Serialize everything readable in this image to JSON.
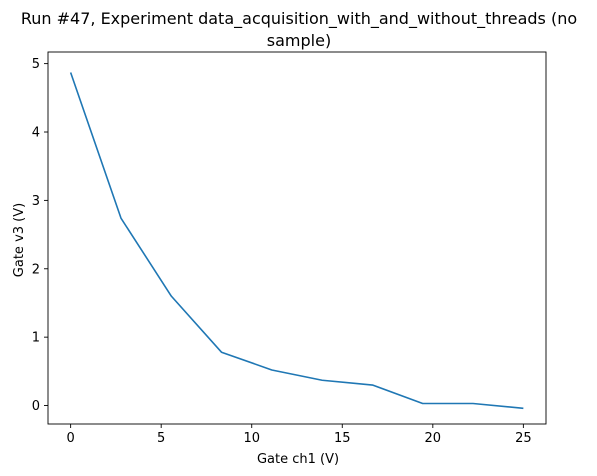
{
  "chart_data": {
    "type": "line",
    "title": "Run #47, Experiment data_acquisition_with_and_without_threads (no sample)",
    "title_lines": [
      "Run #47, Experiment data_acquisition_with_and_without_threads (no",
      "sample)"
    ],
    "xlabel": "Gate ch1 (V)",
    "ylabel": "Gate v3 (V)",
    "xlim": [
      -1.25,
      26.25
    ],
    "ylim": [
      -0.27,
      5.17
    ],
    "xticks": [
      0,
      5,
      10,
      15,
      20,
      25
    ],
    "yticks": [
      0,
      1,
      2,
      3,
      4,
      5
    ],
    "grid": false,
    "series": [
      {
        "color": "#1f77b4",
        "x": [
          0,
          2.78,
          5.56,
          8.33,
          11.11,
          13.89,
          16.67,
          19.44,
          22.22,
          25
        ],
        "y": [
          4.87,
          2.74,
          1.6,
          0.78,
          0.52,
          0.37,
          0.3,
          0.03,
          0.03,
          -0.04
        ]
      }
    ]
  }
}
